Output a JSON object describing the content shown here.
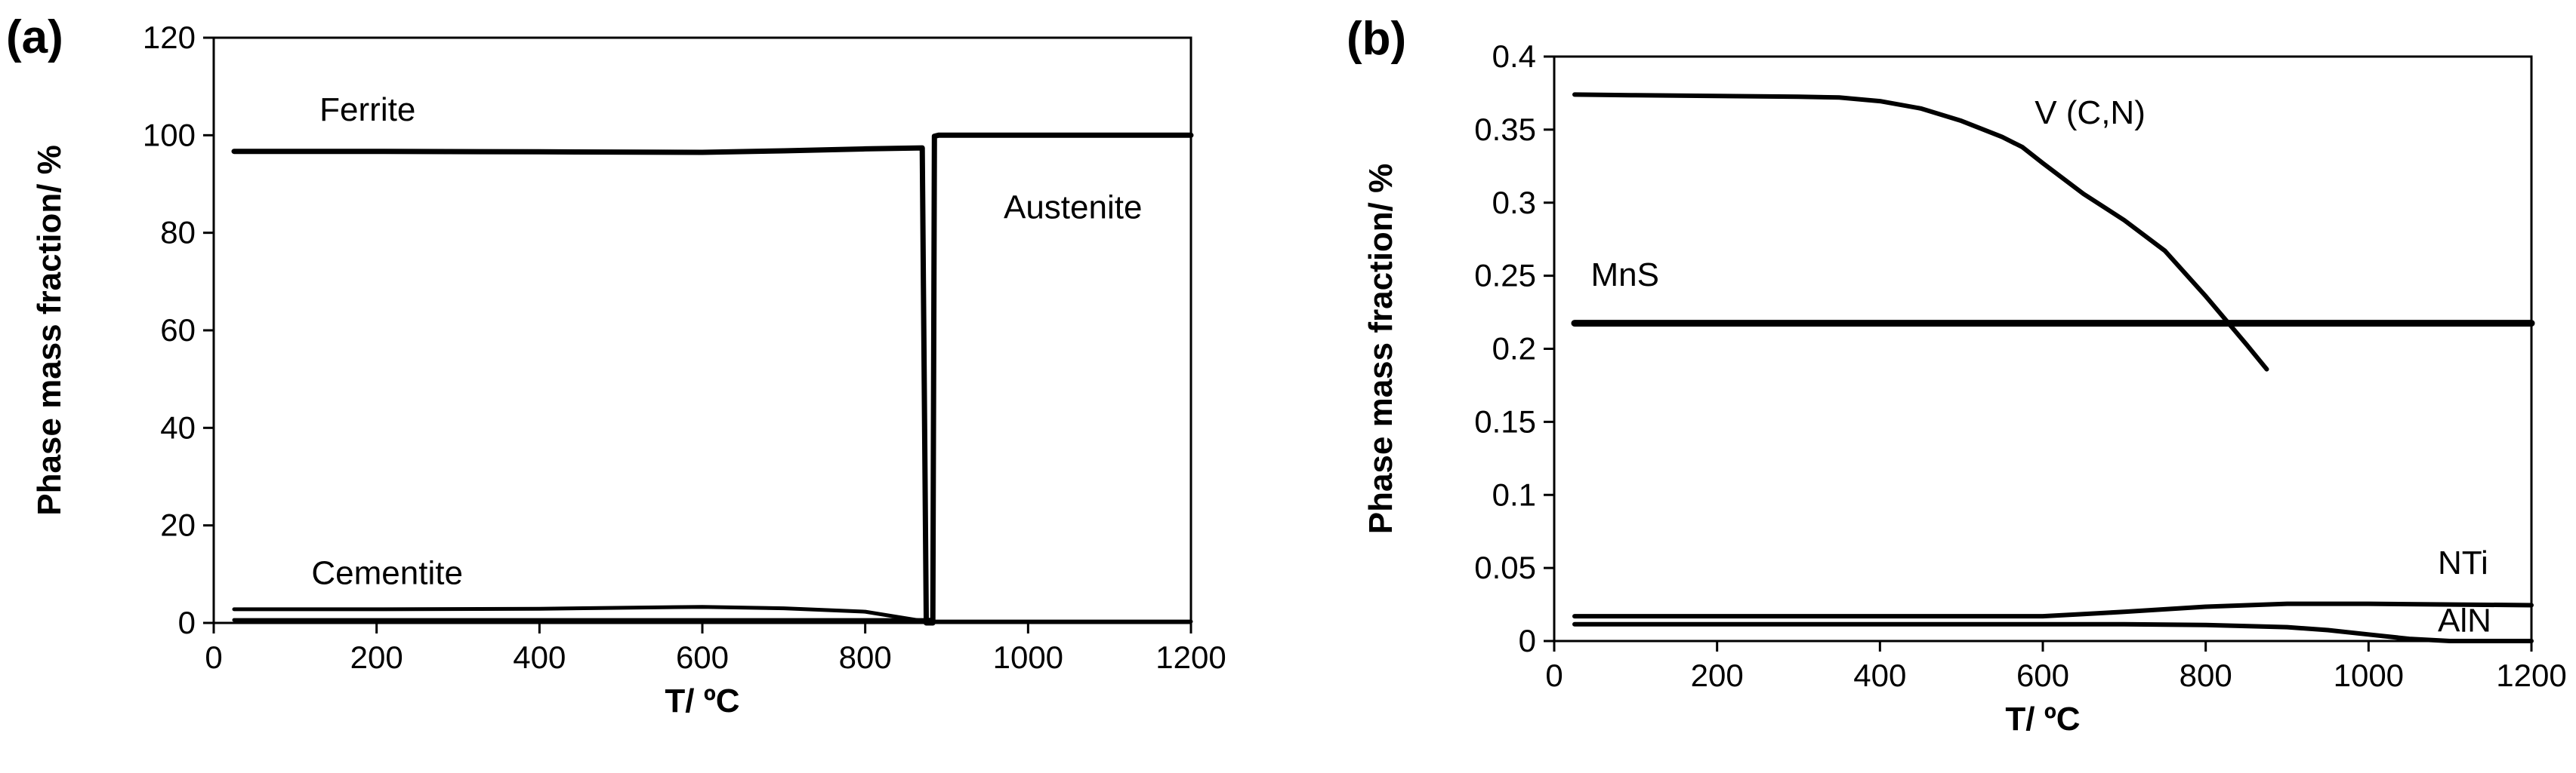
{
  "chart_data": [
    {
      "type": "line",
      "panel_label": "(a)",
      "xlabel": "T/ ºC",
      "ylabel": "Phase mass fraction/ %",
      "xlim": [
        0,
        1200
      ],
      "ylim": [
        0,
        120
      ],
      "xticks": [
        0,
        200,
        400,
        600,
        800,
        1000,
        1200
      ],
      "yticks": [
        0,
        20,
        40,
        60,
        80,
        100,
        120
      ],
      "grid": false,
      "series": [
        {
          "name": "Ferrite",
          "line_width": 7,
          "points": [
            [
              25,
              96.7
            ],
            [
              200,
              96.7
            ],
            [
              400,
              96.6
            ],
            [
              600,
              96.5
            ],
            [
              700,
              96.8
            ],
            [
              800,
              97.2
            ],
            [
              870,
              97.4
            ],
            [
              875,
              0.5
            ],
            [
              880,
              0.5
            ],
            [
              880,
              0
            ]
          ]
        },
        {
          "name": "Cementite",
          "line_width": 5,
          "points": [
            [
              25,
              2.8
            ],
            [
              200,
              2.8
            ],
            [
              400,
              2.9
            ],
            [
              600,
              3.3
            ],
            [
              700,
              3.0
            ],
            [
              800,
              2.3
            ],
            [
              870,
              0.4
            ],
            [
              880,
              0.3
            ],
            [
              1200,
              0.3
            ]
          ]
        },
        {
          "name": "",
          "line_width": 5,
          "points": [
            [
              25,
              0.6
            ],
            [
              400,
              0.6
            ],
            [
              800,
              0.6
            ],
            [
              875,
              0.6
            ]
          ]
        },
        {
          "name": "Austenite",
          "line_width": 7,
          "points": [
            [
              875,
              0
            ],
            [
              883,
              0
            ],
            [
              885,
              99.8
            ],
            [
              890,
              100
            ],
            [
              1200,
              100
            ]
          ]
        }
      ],
      "annotations": [
        {
          "text": "Ferrite",
          "x": 130,
          "y": 103
        },
        {
          "text": "Austenite",
          "x": 970,
          "y": 83
        },
        {
          "text": "Cementite",
          "x": 120,
          "y": 8
        }
      ]
    },
    {
      "type": "line",
      "panel_label": "(b)",
      "xlabel": "T/ ºC",
      "ylabel": "Phase mass fraction/ %",
      "xlim": [
        0,
        1200
      ],
      "ylim": [
        0,
        0.4
      ],
      "xticks": [
        0,
        200,
        400,
        600,
        800,
        1000,
        1200
      ],
      "yticks": [
        0,
        0.05,
        0.1,
        0.15,
        0.2,
        0.25,
        0.3,
        0.35,
        0.4
      ],
      "ytick_labels": [
        "0",
        "0.05",
        "0.1",
        "0.15",
        "0.2",
        "0.25",
        "0.3",
        "0.35",
        "0.4"
      ],
      "grid": false,
      "series": [
        {
          "name": "V (C,N)",
          "line_width": 6,
          "points": [
            [
              25,
              0.374
            ],
            [
              100,
              0.3735
            ],
            [
              200,
              0.373
            ],
            [
              300,
              0.3725
            ],
            [
              350,
              0.372
            ],
            [
              400,
              0.3695
            ],
            [
              450,
              0.3645
            ],
            [
              500,
              0.356
            ],
            [
              550,
              0.345
            ],
            [
              575,
              0.338
            ],
            [
              600,
              0.327
            ],
            [
              650,
              0.306
            ],
            [
              700,
              0.288
            ],
            [
              750,
              0.267
            ],
            [
              800,
              0.236
            ],
            [
              850,
              0.203
            ],
            [
              875,
              0.186
            ]
          ]
        },
        {
          "name": "MnS",
          "line_width": 9,
          "points": [
            [
              25,
              0.2175
            ],
            [
              1200,
              0.2175
            ]
          ]
        },
        {
          "name": "NTi",
          "line_width": 6,
          "points": [
            [
              25,
              0.017
            ],
            [
              600,
              0.017
            ],
            [
              650,
              0.0185
            ],
            [
              700,
              0.02
            ],
            [
              800,
              0.0235
            ],
            [
              900,
              0.0255
            ],
            [
              1000,
              0.0255
            ],
            [
              1200,
              0.0245
            ]
          ]
        },
        {
          "name": "AlN",
          "line_width": 6,
          "points": [
            [
              25,
              0.0115
            ],
            [
              600,
              0.0115
            ],
            [
              700,
              0.0115
            ],
            [
              800,
              0.011
            ],
            [
              900,
              0.0095
            ],
            [
              950,
              0.0075
            ],
            [
              1000,
              0.0045
            ],
            [
              1050,
              0.0015
            ],
            [
              1100,
              0
            ],
            [
              1200,
              0
            ]
          ]
        }
      ],
      "annotations": [
        {
          "text": "V (C,N)",
          "x": 590,
          "y": 0.354
        },
        {
          "text": "MnS",
          "x": 45,
          "y": 0.243
        },
        {
          "text": "NTi",
          "x": 1085,
          "y": 0.046
        },
        {
          "text": "AlN",
          "x": 1085,
          "y": 0.0065
        }
      ]
    }
  ]
}
